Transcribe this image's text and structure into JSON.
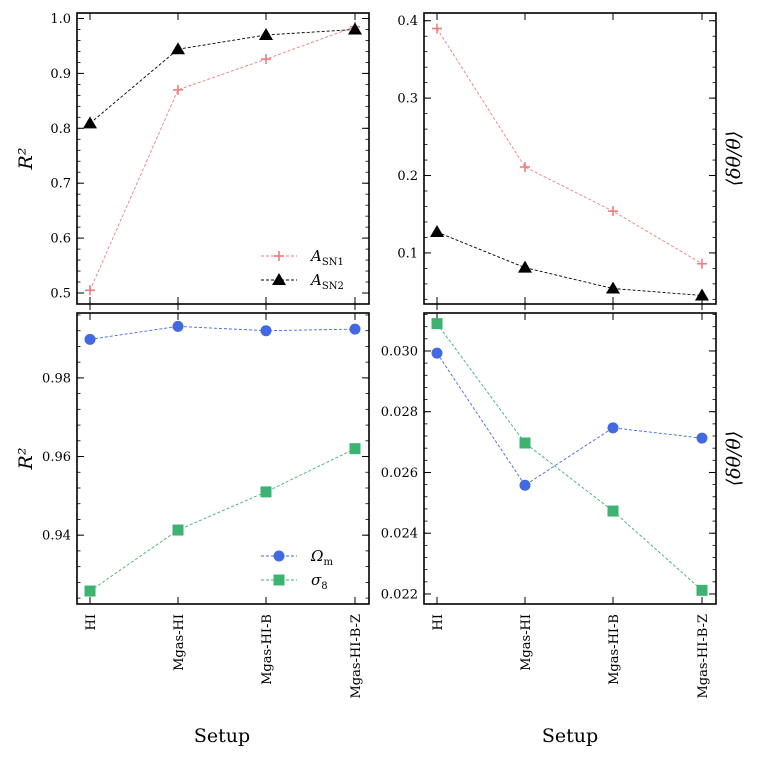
{
  "figure": {
    "xlabel": "Setup",
    "categories": [
      "HI",
      "Mgas-HI",
      "Mgas-HI-B",
      "Mgas-HI-B-Z"
    ]
  },
  "colors": {
    "a_sn1": "#f07c80",
    "a_sn2": "#000000",
    "omega_m": "#4169e1",
    "sigma_8": "#3cb371"
  },
  "chart_data": [
    {
      "type": "line",
      "panel": "top-left",
      "ylabel": "R²",
      "ylim": [
        0.48,
        1.01
      ],
      "yticks": [
        0.5,
        0.6,
        0.7,
        0.8,
        0.9,
        1.0
      ],
      "ytick_labels": [
        "0.5",
        "0.6",
        "0.7",
        "0.8",
        "0.9",
        "1.0"
      ],
      "legend_position": "lower-right",
      "series": [
        {
          "key": "a_sn1",
          "name": "A_SN1",
          "label_main": "A",
          "label_sub": "SN1",
          "marker": "plus",
          "values": [
            0.505,
            0.87,
            0.926,
            0.985
          ]
        },
        {
          "key": "a_sn2",
          "name": "A_SN2",
          "label_main": "A",
          "label_sub": "SN2",
          "marker": "triangle",
          "values": [
            0.809,
            0.944,
            0.97,
            0.98
          ]
        }
      ]
    },
    {
      "type": "line",
      "panel": "top-right",
      "ylabel": "⟨δθ/θ⟩",
      "ylim": [
        0.034,
        0.41
      ],
      "yticks": [
        0.1,
        0.2,
        0.3,
        0.4
      ],
      "ytick_labels": [
        "0.1",
        "0.2",
        "0.3",
        "0.4"
      ],
      "series": [
        {
          "key": "a_sn1",
          "name": "A_SN1",
          "marker": "plus",
          "values": [
            0.39,
            0.211,
            0.154,
            0.086
          ]
        },
        {
          "key": "a_sn2",
          "name": "A_SN2",
          "marker": "triangle",
          "values": [
            0.127,
            0.081,
            0.054,
            0.045
          ]
        }
      ]
    },
    {
      "type": "line",
      "panel": "bottom-left",
      "ylabel": "R²",
      "ylim": [
        0.9225,
        0.9965
      ],
      "yticks": [
        0.94,
        0.96,
        0.98
      ],
      "ytick_labels": [
        "0.94",
        "0.96",
        "0.98"
      ],
      "legend_position": "lower-right",
      "series": [
        {
          "key": "omega_m",
          "name": "Ω_m",
          "label_main": "Ω",
          "label_sub": "m",
          "marker": "circle",
          "values": [
            0.9898,
            0.9931,
            0.992,
            0.9924
          ]
        },
        {
          "key": "sigma_8",
          "name": "σ_8",
          "label_main": "σ",
          "label_sub": "8",
          "marker": "square",
          "values": [
            0.9258,
            0.9413,
            0.951,
            0.962
          ]
        }
      ]
    },
    {
      "type": "line",
      "panel": "bottom-right",
      "ylabel": "⟨δθ/θ⟩",
      "ylim": [
        0.02167,
        0.03125
      ],
      "yticks": [
        0.022,
        0.024,
        0.026,
        0.028,
        0.03
      ],
      "ytick_labels": [
        "0.022",
        "0.024",
        "0.026",
        "0.028",
        "0.030"
      ],
      "series": [
        {
          "key": "omega_m",
          "name": "Ω_m",
          "marker": "circle",
          "values": [
            0.02993,
            0.02558,
            0.02747,
            0.02713
          ]
        },
        {
          "key": "sigma_8",
          "name": "σ_8",
          "marker": "square",
          "values": [
            0.0309,
            0.02697,
            0.02473,
            0.02212
          ]
        }
      ]
    }
  ]
}
